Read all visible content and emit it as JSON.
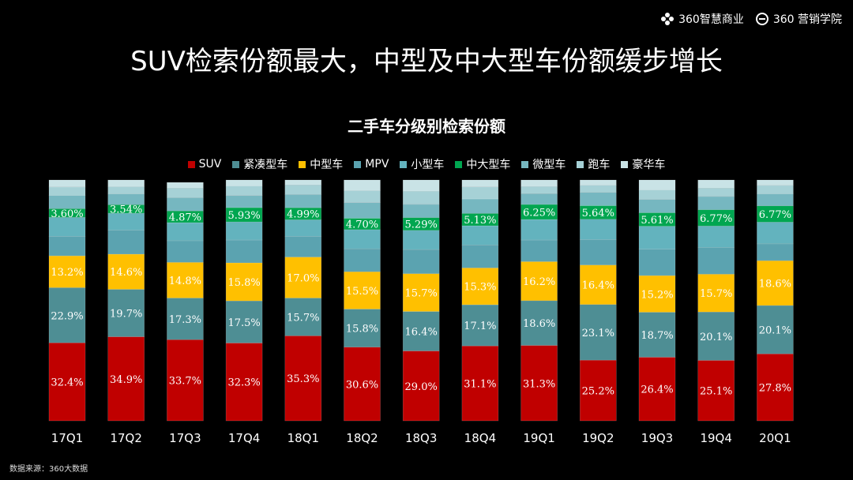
{
  "header": {
    "logo1_text": "360智慧商业",
    "logo2_text": "360 营销学院"
  },
  "page_title": "SUV检索份额最大，中型及中大型车份额缓步增长",
  "source_note": "数据来源：360大数据",
  "chart_data": {
    "type": "bar",
    "stacked": true,
    "title": "二手车分级别检索份额",
    "categories": [
      "17Q1",
      "17Q2",
      "17Q3",
      "17Q4",
      "18Q1",
      "18Q2",
      "18Q3",
      "18Q4",
      "19Q1",
      "19Q2",
      "19Q3",
      "19Q4",
      "20Q1"
    ],
    "legend_position": "top",
    "series": [
      {
        "name": "SUV",
        "color": "#C00000",
        "values": [
          32.4,
          34.9,
          33.7,
          32.3,
          35.3,
          30.6,
          29.0,
          31.1,
          31.3,
          25.2,
          26.4,
          25.1,
          27.8
        ],
        "labels": [
          "32.4%",
          "34.9%",
          "33.7%",
          "32.3%",
          "35.3%",
          "30.6%",
          "29.0%",
          "31.1%",
          "31.3%",
          "25.2%",
          "26.4%",
          "25.1%",
          "27.8%"
        ]
      },
      {
        "name": "紧凑型车",
        "color": "#4E8E94",
        "values": [
          22.9,
          19.7,
          17.3,
          17.5,
          15.7,
          15.8,
          16.4,
          17.1,
          18.6,
          23.1,
          18.7,
          20.1,
          20.1
        ],
        "labels": [
          "22.9%",
          "19.7%",
          "17.3%",
          "17.5%",
          "15.7%",
          "15.8%",
          "16.4%",
          "17.1%",
          "18.6%",
          "23.1%",
          "18.7%",
          "20.1%",
          "20.1%"
        ]
      },
      {
        "name": "中型车",
        "color": "#FFC000",
        "values": [
          13.2,
          14.6,
          14.8,
          15.8,
          17.0,
          15.5,
          15.7,
          15.3,
          16.2,
          16.4,
          15.2,
          15.7,
          18.6
        ],
        "labels": [
          "13.2%",
          "14.6%",
          "14.8%",
          "15.8%",
          "17.0%",
          "15.5%",
          "15.7%",
          "15.3%",
          "16.2%",
          "16.4%",
          "15.2%",
          "15.7%",
          "18.6%"
        ]
      },
      {
        "name": "MPV",
        "color": "#5BA3B0",
        "values": [
          8.0,
          10.0,
          9.0,
          9.5,
          8.5,
          9.5,
          10.0,
          9.5,
          9.0,
          10.5,
          11.0,
          11.0,
          7.0
        ],
        "labels": []
      },
      {
        "name": "小型车",
        "color": "#63B3BE",
        "values": [
          8.0,
          7.0,
          7.5,
          7.5,
          7.0,
          8.0,
          8.0,
          8.0,
          8.5,
          8.5,
          9.5,
          9.0,
          9.0
        ],
        "labels": []
      },
      {
        "name": "中大型车",
        "color": "#00A650",
        "values": [
          3.6,
          3.54,
          4.87,
          5.93,
          4.99,
          4.7,
          5.29,
          5.13,
          6.25,
          5.64,
          5.61,
          6.77,
          6.77
        ],
        "labels": [
          "3.60%",
          "3.54%",
          "4.87%",
          "5.93%",
          "4.99%",
          "4.70%",
          "5.29%",
          "5.13%",
          "6.25%",
          "5.64%",
          "5.61%",
          "6.77%",
          "6.77%"
        ]
      },
      {
        "name": "微型车",
        "color": "#76B7C0",
        "values": [
          5.5,
          4.5,
          5.5,
          5.0,
          5.5,
          6.5,
          5.5,
          6.0,
          4.5,
          5.5,
          5.5,
          5.5,
          5.0
        ],
        "labels": []
      },
      {
        "name": "跑车",
        "color": "#A6D1D6",
        "values": [
          3.5,
          3.0,
          4.0,
          4.0,
          4.0,
          5.0,
          5.5,
          5.0,
          3.0,
          3.0,
          4.0,
          3.5,
          3.5
        ],
        "labels": []
      },
      {
        "name": "豪华车",
        "color": "#C9E3E6",
        "values": [
          2.9,
          2.76,
          2.33,
          2.47,
          2.01,
          4.4,
          4.61,
          2.87,
          2.65,
          2.16,
          4.09,
          3.33,
          2.23
        ],
        "labels": []
      }
    ],
    "ylim": [
      0,
      100
    ],
    "xlabel": "",
    "ylabel": ""
  }
}
